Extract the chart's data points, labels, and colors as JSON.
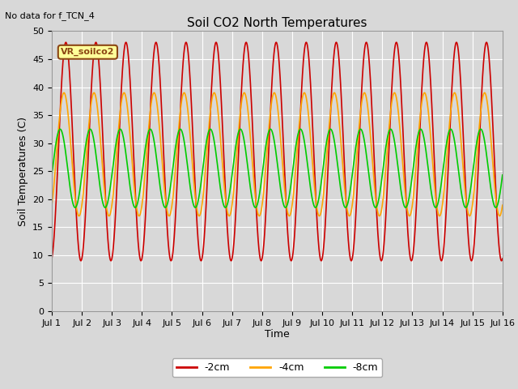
{
  "title": "Soil CO2 North Temperatures",
  "no_data_text": "No data for f_TCN_4",
  "ylabel": "Soil Temperatures (C)",
  "xlabel": "Time",
  "annotation": "VR_soilco2",
  "xlim": [
    0,
    15
  ],
  "ylim": [
    0,
    50
  ],
  "xtick_labels": [
    "Jul 1",
    "Jul 2",
    "Jul 3",
    "Jul 4",
    "Jul 5",
    "Jul 6",
    "Jul 7",
    "Jul 8",
    "Jul 9",
    "Jul 10",
    "Jul 11",
    "Jul 12",
    "Jul 13",
    "Jul 14",
    "Jul 15",
    "Jul 16"
  ],
  "ytick_values": [
    0,
    5,
    10,
    15,
    20,
    25,
    30,
    35,
    40,
    45,
    50
  ],
  "series_2cm_color": "#cc0000",
  "series_4cm_color": "#ffa500",
  "series_8cm_color": "#00cc00",
  "legend_labels": [
    "-2cm",
    "-4cm",
    "-8cm"
  ],
  "legend_colors": [
    "#cc0000",
    "#ffa500",
    "#00cc00"
  ],
  "fig_bg_color": "#d8d8d8",
  "plot_bg_color": "#d8d8d8",
  "title_fontsize": 11,
  "label_fontsize": 9,
  "tick_fontsize": 8,
  "grid_color": "#ffffff",
  "linewidth": 1.2,
  "red_mean": 28.5,
  "red_amp": 19.5,
  "red_phase": -1.37,
  "orange_mean": 28.0,
  "orange_amp": 11.0,
  "orange_phase": -0.97,
  "green_mean": 25.5,
  "green_amp": 7.0,
  "green_phase": -0.17,
  "period": 1.0
}
